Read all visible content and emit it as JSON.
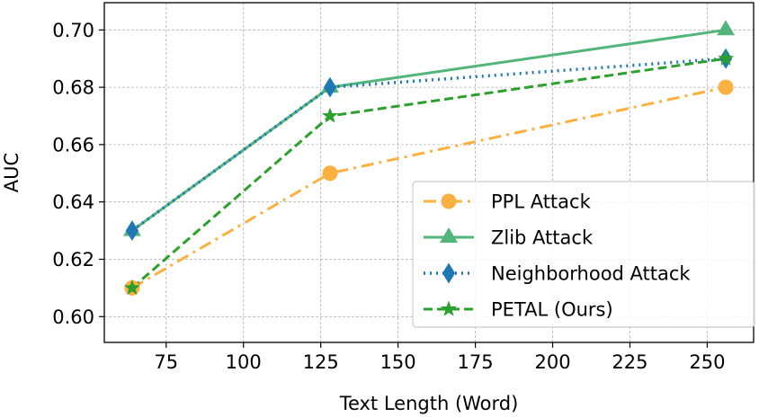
{
  "chart_data": {
    "type": "line",
    "title": "",
    "xlabel": "Text Length (Word)",
    "ylabel": "AUC",
    "xlim": [
      55,
      265
    ],
    "ylim": [
      0.591,
      0.7095
    ],
    "xticks": [
      75,
      100,
      125,
      150,
      175,
      200,
      225,
      250
    ],
    "yticks": [
      0.6,
      0.62,
      0.64,
      0.66,
      0.68,
      0.7
    ],
    "xtick_labels": [
      "75",
      "100",
      "125",
      "150",
      "175",
      "200",
      "225",
      "250"
    ],
    "ytick_labels": [
      "0.60",
      "0.62",
      "0.64",
      "0.66",
      "0.68",
      "0.70"
    ],
    "grid": true,
    "legend_position": "lower-right",
    "x": [
      64,
      128,
      256
    ],
    "series": [
      {
        "name": "PPL Attack",
        "values": [
          0.61,
          0.65,
          0.68
        ],
        "color": "#fbb040",
        "dash": "14 6 3 6",
        "marker": "circle",
        "width": 3
      },
      {
        "name": "Zlib Attack",
        "values": [
          0.63,
          0.68,
          0.7
        ],
        "color": "#52b57a",
        "dash": "",
        "marker": "triangle",
        "width": 3
      },
      {
        "name": "Neighborhood Attack",
        "values": [
          0.63,
          0.68,
          0.69
        ],
        "color": "#1f77b4",
        "dash": "2 5",
        "marker": "diamond",
        "width": 3.5
      },
      {
        "name": "PETAL (Ours)",
        "values": [
          0.61,
          0.67,
          0.69
        ],
        "color": "#2ca02c",
        "dash": "10 5",
        "marker": "star",
        "width": 3
      }
    ]
  }
}
